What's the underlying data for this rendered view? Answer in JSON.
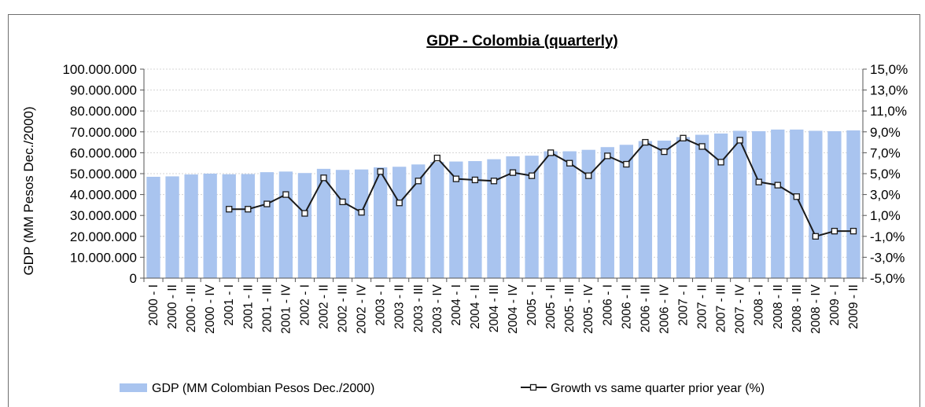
{
  "chart_data": {
    "type": "bar",
    "title": "GDP - Colombia (quarterly)",
    "ylabel": "GDP (MM Pesos Dec./2000)",
    "ylim": [
      0,
      100000000
    ],
    "y2lim": [
      -5.0,
      15.0
    ],
    "yticks": [
      "0",
      "10.000.000",
      "20.000.000",
      "30.000.000",
      "40.000.000",
      "50.000.000",
      "60.000.000",
      "70.000.000",
      "80.000.000",
      "90.000.000",
      "100.000.000"
    ],
    "y2ticks": [
      "-5,0%",
      "-3,0%",
      "-1,0%",
      "1,0%",
      "3,0%",
      "5,0%",
      "7,0%",
      "9,0%",
      "11,0%",
      "13,0%",
      "15,0%"
    ],
    "grid": true,
    "legend_position": "bottom",
    "categories": [
      "2000 - I",
      "2000 - II",
      "2000 - III",
      "2000 - IV",
      "2001 - I",
      "2001 - II",
      "2001 - III",
      "2001 - IV",
      "2002 - I",
      "2002 - II",
      "2002 - III",
      "2002 - IV",
      "2003 - I",
      "2003 - II",
      "2003 - III",
      "2003 - IV",
      "2004 - I",
      "2004 - II",
      "2004 - III",
      "2004 - IV",
      "2005 - I",
      "2005 - II",
      "2005 - III",
      "2005 - IV",
      "2006 - I",
      "2006 - II",
      "2006 - III",
      "2006 - IV",
      "2007 - I",
      "2007 - II",
      "2007 - III",
      "2007 - IV",
      "2008 - I",
      "2008 - II",
      "2008 - III",
      "2008 - IV",
      "2009 - I",
      "2009 - II"
    ],
    "series": [
      {
        "name": "GDP (MM Colombian Pesos Dec./2000)",
        "type": "bar",
        "axis": "left",
        "color": "#a9c4ef",
        "values": [
          48500000,
          48700000,
          49600000,
          50000000,
          49700000,
          49800000,
          50700000,
          51000000,
          50300000,
          52300000,
          51800000,
          52000000,
          53000000,
          53300000,
          54400000,
          55600000,
          55800000,
          56000000,
          56900000,
          58300000,
          58600000,
          60700000,
          60700000,
          61400000,
          62700000,
          63800000,
          65600000,
          65800000,
          67500000,
          68600000,
          69200000,
          70500000,
          70300000,
          71100000,
          71100000,
          70500000,
          70300000,
          70700000
        ]
      },
      {
        "name": "Growth vs same quarter prior year (%)",
        "type": "line",
        "axis": "right",
        "color": "#1a1a1a",
        "values": [
          null,
          null,
          null,
          null,
          1.6,
          1.6,
          2.1,
          3.0,
          1.2,
          4.6,
          2.3,
          1.3,
          5.2,
          2.2,
          4.3,
          6.5,
          4.5,
          4.4,
          4.3,
          5.1,
          4.8,
          7.0,
          6.0,
          4.8,
          6.7,
          5.9,
          8.0,
          7.1,
          8.4,
          7.6,
          6.1,
          8.2,
          4.2,
          3.9,
          2.8,
          -1.0,
          -0.5,
          -0.5
        ]
      }
    ]
  }
}
